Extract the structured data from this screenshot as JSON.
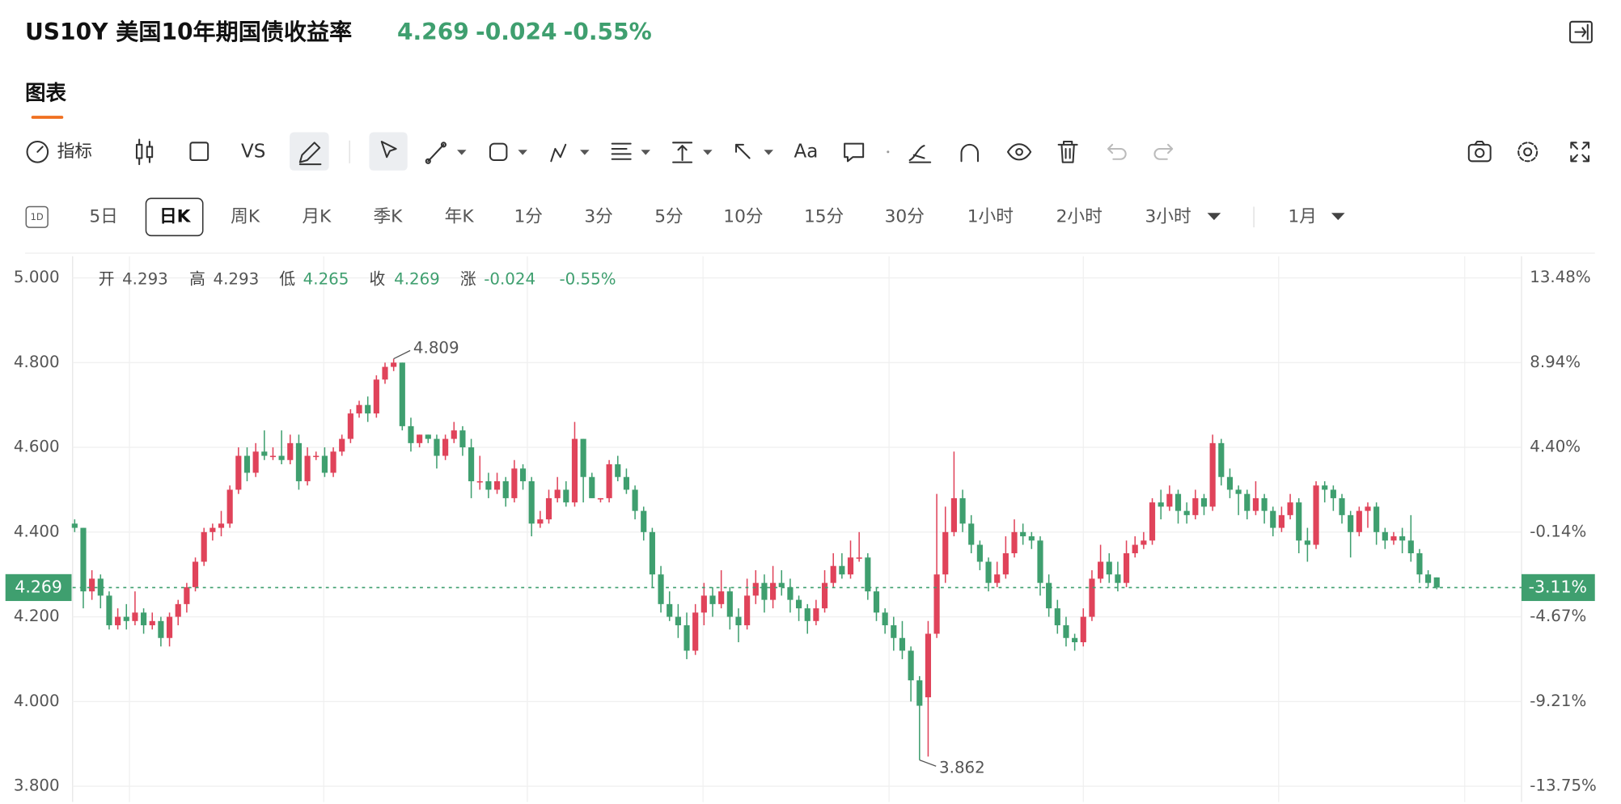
{
  "header": {
    "title": "US10Y 美国10年期国债收益率",
    "change": -0.024,
    "change_pct": "-0.55%",
    "tab": "图表"
  },
  "toolbar": {
    "indicator": "指标",
    "vs": "VS",
    "text": "Aa"
  },
  "periods": {
    "icon": "1D",
    "items": [
      "5日",
      "日K",
      "周K",
      "月K",
      "季K",
      "年K",
      "1分",
      "3分",
      "5分",
      "10分",
      "15分",
      "30分",
      "1小时",
      "2小时",
      "3小时",
      "1月"
    ]
  },
  "chart_data": {
    "type": "candlestick",
    "legend_labels": [
      "开",
      "高",
      "低",
      "收",
      "涨"
    ],
    "up_color": "#e0435a",
    "down_color": "#3f9f6f",
    "last_pct_label": "-3.11%",
    "ylim": [
      3.763,
      5.051
    ],
    "yticks": [
      {
        "value": 5,
        "label": "5.000"
      },
      {
        "value": 4.8,
        "label": "4.800"
      },
      {
        "value": 4.6,
        "label": "4.600"
      },
      {
        "value": 4.4,
        "label": "4.400"
      },
      {
        "value": 4.2,
        "label": "4.200"
      },
      {
        "value": 4,
        "label": "4.000"
      },
      {
        "value": 3.8,
        "label": "3.800"
      }
    ],
    "y2lim": [
      -14.59,
      14.64
    ],
    "y2ticks": [
      {
        "value": 13.48,
        "label": "13.48%"
      },
      {
        "value": 8.94,
        "label": "8.94%"
      },
      {
        "value": 4.4,
        "label": "4.40%"
      },
      {
        "value": -0.14,
        "label": "-0.14%"
      },
      {
        "value": -4.67,
        "label": "-4.67%"
      },
      {
        "value": -9.21,
        "label": "-9.21%"
      },
      {
        "value": -13.75,
        "label": "-13.75%"
      }
    ],
    "grid": true,
    "high_index": 37,
    "low_index": 98,
    "ohlc": [
      [
        4.42,
        4.43,
        4.4,
        4.41
      ],
      [
        4.41,
        4.41,
        4.22,
        4.26
      ],
      [
        4.26,
        4.31,
        4.24,
        4.29
      ],
      [
        4.29,
        4.3,
        4.22,
        4.25
      ],
      [
        4.25,
        4.26,
        4.17,
        4.18
      ],
      [
        4.18,
        4.22,
        4.17,
        4.2
      ],
      [
        4.2,
        4.23,
        4.17,
        4.19
      ],
      [
        4.19,
        4.26,
        4.18,
        4.21
      ],
      [
        4.21,
        4.22,
        4.16,
        4.18
      ],
      [
        4.18,
        4.21,
        4.17,
        4.19
      ],
      [
        4.19,
        4.2,
        4.13,
        4.15
      ],
      [
        4.15,
        4.21,
        4.13,
        4.2
      ],
      [
        4.2,
        4.24,
        4.18,
        4.23
      ],
      [
        4.23,
        4.28,
        4.21,
        4.27
      ],
      [
        4.27,
        4.34,
        4.26,
        4.33
      ],
      [
        4.33,
        4.41,
        4.32,
        4.4
      ],
      [
        4.4,
        4.42,
        4.38,
        4.41
      ],
      [
        4.41,
        4.45,
        4.39,
        4.42
      ],
      [
        4.42,
        4.51,
        4.41,
        4.5
      ],
      [
        4.5,
        4.6,
        4.49,
        4.58
      ],
      [
        4.58,
        4.6,
        4.52,
        4.54
      ],
      [
        4.54,
        4.61,
        4.53,
        4.59
      ],
      [
        4.59,
        4.64,
        4.57,
        4.58
      ],
      [
        4.58,
        4.6,
        4.57,
        4.58
      ],
      [
        4.58,
        4.64,
        4.56,
        4.57
      ],
      [
        4.57,
        4.63,
        4.56,
        4.61
      ],
      [
        4.61,
        4.63,
        4.5,
        4.52
      ],
      [
        4.52,
        4.6,
        4.51,
        4.58
      ],
      [
        4.58,
        4.59,
        4.57,
        4.58
      ],
      [
        4.58,
        4.6,
        4.53,
        4.54
      ],
      [
        4.54,
        4.6,
        4.53,
        4.59
      ],
      [
        4.59,
        4.63,
        4.58,
        4.62
      ],
      [
        4.62,
        4.69,
        4.61,
        4.68
      ],
      [
        4.68,
        4.71,
        4.67,
        4.7
      ],
      [
        4.7,
        4.72,
        4.66,
        4.68
      ],
      [
        4.68,
        4.77,
        4.67,
        4.76
      ],
      [
        4.76,
        4.8,
        4.75,
        4.79
      ],
      [
        4.79,
        4.809,
        4.78,
        4.8
      ],
      [
        4.8,
        4.8,
        4.64,
        4.65
      ],
      [
        4.65,
        4.67,
        4.59,
        4.61
      ],
      [
        4.61,
        4.63,
        4.6,
        4.63
      ],
      [
        4.63,
        4.63,
        4.61,
        4.62
      ],
      [
        4.62,
        4.63,
        4.55,
        4.58
      ],
      [
        4.58,
        4.63,
        4.57,
        4.62
      ],
      [
        4.62,
        4.66,
        4.61,
        4.64
      ],
      [
        4.64,
        4.65,
        4.58,
        4.6
      ],
      [
        4.6,
        4.62,
        4.48,
        4.52
      ],
      [
        4.52,
        4.58,
        4.5,
        4.52
      ],
      [
        4.52,
        4.54,
        4.48,
        4.5
      ],
      [
        4.5,
        4.54,
        4.49,
        4.52
      ],
      [
        4.52,
        4.53,
        4.46,
        4.48
      ],
      [
        4.48,
        4.57,
        4.47,
        4.55
      ],
      [
        4.55,
        4.56,
        4.5,
        4.52
      ],
      [
        4.52,
        4.53,
        4.39,
        4.42
      ],
      [
        4.42,
        4.45,
        4.41,
        4.43
      ],
      [
        4.43,
        4.5,
        4.42,
        4.48
      ],
      [
        4.48,
        4.53,
        4.47,
        4.5
      ],
      [
        4.5,
        4.52,
        4.46,
        4.47
      ],
      [
        4.47,
        4.66,
        4.46,
        4.62
      ],
      [
        4.62,
        4.62,
        4.47,
        4.53
      ],
      [
        4.53,
        4.54,
        4.48,
        4.48
      ],
      [
        4.48,
        4.48,
        4.47,
        4.48
      ],
      [
        4.48,
        4.57,
        4.47,
        4.56
      ],
      [
        4.56,
        4.58,
        4.52,
        4.53
      ],
      [
        4.53,
        4.55,
        4.49,
        4.5
      ],
      [
        4.5,
        4.51,
        4.43,
        4.45
      ],
      [
        4.45,
        4.46,
        4.38,
        4.4
      ],
      [
        4.4,
        4.41,
        4.27,
        4.3
      ],
      [
        4.3,
        4.32,
        4.21,
        4.23
      ],
      [
        4.23,
        4.26,
        4.19,
        4.2
      ],
      [
        4.2,
        4.23,
        4.15,
        4.18
      ],
      [
        4.18,
        4.21,
        4.1,
        4.12
      ],
      [
        4.12,
        4.23,
        4.11,
        4.21
      ],
      [
        4.21,
        4.28,
        4.18,
        4.25
      ],
      [
        4.25,
        4.27,
        4.2,
        4.23
      ],
      [
        4.23,
        4.31,
        4.22,
        4.26
      ],
      [
        4.26,
        4.27,
        4.17,
        4.2
      ],
      [
        4.2,
        4.22,
        4.14,
        4.18
      ],
      [
        4.18,
        4.29,
        4.17,
        4.25
      ],
      [
        4.25,
        4.31,
        4.23,
        4.28
      ],
      [
        4.28,
        4.3,
        4.21,
        4.24
      ],
      [
        4.24,
        4.32,
        4.22,
        4.28
      ],
      [
        4.28,
        4.31,
        4.25,
        4.27
      ],
      [
        4.27,
        4.29,
        4.21,
        4.24
      ],
      [
        4.24,
        4.25,
        4.19,
        4.22
      ],
      [
        4.22,
        4.23,
        4.16,
        4.19
      ],
      [
        4.19,
        4.24,
        4.18,
        4.22
      ],
      [
        4.22,
        4.31,
        4.21,
        4.28
      ],
      [
        4.28,
        4.35,
        4.27,
        4.32
      ],
      [
        4.32,
        4.35,
        4.29,
        4.3
      ],
      [
        4.3,
        4.38,
        4.29,
        4.34
      ],
      [
        4.34,
        4.4,
        4.33,
        4.34
      ],
      [
        4.34,
        4.35,
        4.24,
        4.26
      ],
      [
        4.26,
        4.27,
        4.19,
        4.21
      ],
      [
        4.21,
        4.22,
        4.16,
        4.18
      ],
      [
        4.18,
        4.2,
        4.12,
        4.15
      ],
      [
        4.15,
        4.19,
        4.1,
        4.12
      ],
      [
        4.12,
        4.13,
        4.0,
        4.05
      ],
      [
        4.05,
        4.06,
        3.862,
        3.99
      ],
      [
        4.01,
        4.19,
        3.87,
        4.16
      ],
      [
        4.16,
        4.49,
        4.15,
        4.3
      ],
      [
        4.3,
        4.46,
        4.28,
        4.4
      ],
      [
        4.4,
        4.59,
        4.39,
        4.48
      ],
      [
        4.48,
        4.5,
        4.4,
        4.42
      ],
      [
        4.42,
        4.44,
        4.35,
        4.37
      ],
      [
        4.37,
        4.38,
        4.31,
        4.33
      ],
      [
        4.33,
        4.34,
        4.26,
        4.28
      ],
      [
        4.28,
        4.33,
        4.27,
        4.3
      ],
      [
        4.3,
        4.39,
        4.29,
        4.35
      ],
      [
        4.35,
        4.43,
        4.34,
        4.4
      ],
      [
        4.4,
        4.42,
        4.37,
        4.39
      ],
      [
        4.39,
        4.4,
        4.36,
        4.38
      ],
      [
        4.38,
        4.39,
        4.25,
        4.28
      ],
      [
        4.28,
        4.3,
        4.2,
        4.22
      ],
      [
        4.22,
        4.24,
        4.16,
        4.18
      ],
      [
        4.18,
        4.2,
        4.13,
        4.15
      ],
      [
        4.15,
        4.16,
        4.12,
        4.14
      ],
      [
        4.14,
        4.22,
        4.13,
        4.2
      ],
      [
        4.2,
        4.31,
        4.19,
        4.29
      ],
      [
        4.29,
        4.37,
        4.28,
        4.33
      ],
      [
        4.33,
        4.35,
        4.28,
        4.3
      ],
      [
        4.3,
        4.33,
        4.26,
        4.28
      ],
      [
        4.28,
        4.38,
        4.27,
        4.35
      ],
      [
        4.35,
        4.39,
        4.34,
        4.37
      ],
      [
        4.37,
        4.4,
        4.36,
        4.38
      ],
      [
        4.38,
        4.48,
        4.37,
        4.47
      ],
      [
        4.47,
        4.5,
        4.43,
        4.46
      ],
      [
        4.46,
        4.51,
        4.45,
        4.49
      ],
      [
        4.49,
        4.5,
        4.42,
        4.45
      ],
      [
        4.45,
        4.47,
        4.42,
        4.44
      ],
      [
        4.44,
        4.5,
        4.43,
        4.48
      ],
      [
        4.48,
        4.49,
        4.44,
        4.46
      ],
      [
        4.46,
        4.63,
        4.45,
        4.61
      ],
      [
        4.61,
        4.62,
        4.51,
        4.53
      ],
      [
        4.53,
        4.55,
        4.48,
        4.5
      ],
      [
        4.5,
        4.51,
        4.44,
        4.49
      ],
      [
        4.49,
        4.5,
        4.43,
        4.45
      ],
      [
        4.45,
        4.52,
        4.44,
        4.48
      ],
      [
        4.48,
        4.49,
        4.42,
        4.45
      ],
      [
        4.45,
        4.46,
        4.39,
        4.41
      ],
      [
        4.41,
        4.46,
        4.4,
        4.44
      ],
      [
        4.44,
        4.49,
        4.43,
        4.47
      ],
      [
        4.47,
        4.48,
        4.35,
        4.38
      ],
      [
        4.38,
        4.41,
        4.33,
        4.37
      ],
      [
        4.37,
        4.52,
        4.36,
        4.51
      ],
      [
        4.51,
        4.52,
        4.47,
        4.5
      ],
      [
        4.5,
        4.51,
        4.45,
        4.48
      ],
      [
        4.48,
        4.49,
        4.42,
        4.44
      ],
      [
        4.44,
        4.45,
        4.34,
        4.4
      ],
      [
        4.4,
        4.46,
        4.39,
        4.45
      ],
      [
        4.45,
        4.47,
        4.41,
        4.46
      ],
      [
        4.46,
        4.47,
        4.37,
        4.4
      ],
      [
        4.4,
        4.41,
        4.36,
        4.38
      ],
      [
        4.38,
        4.4,
        4.37,
        4.39
      ],
      [
        4.39,
        4.41,
        4.35,
        4.38
      ],
      [
        4.38,
        4.44,
        4.33,
        4.35
      ],
      [
        4.35,
        4.36,
        4.28,
        4.3
      ],
      [
        4.3,
        4.31,
        4.27,
        4.28
      ],
      [
        4.293,
        4.293,
        4.265,
        4.269
      ]
    ]
  }
}
